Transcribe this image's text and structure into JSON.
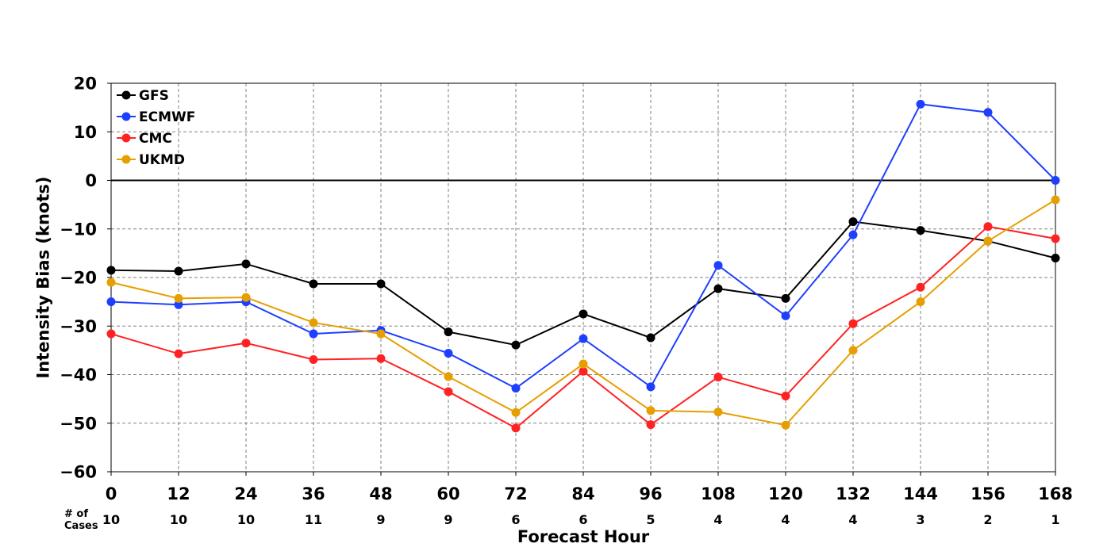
{
  "chart_data": {
    "type": "line",
    "xlabel": "Forecast Hour",
    "ylabel": "Intensity Bias (knots)",
    "x": [
      0,
      12,
      24,
      36,
      48,
      60,
      72,
      84,
      96,
      108,
      120,
      132,
      144,
      156,
      168
    ],
    "x_tick_labels": [
      "0",
      "12",
      "24",
      "36",
      "48",
      "60",
      "72",
      "84",
      "96",
      "108",
      "120",
      "132",
      "144",
      "156",
      "168"
    ],
    "ylim": [
      -60,
      20
    ],
    "y_ticks": [
      20,
      10,
      0,
      -10,
      -20,
      -30,
      -40,
      -50,
      -60
    ],
    "y_tick_labels": [
      "20",
      "10",
      "0",
      "−10",
      "−20",
      "−30",
      "−40",
      "−50",
      "−60"
    ],
    "grid": true,
    "zero_line": true,
    "legend_position": "top-left",
    "cases_title": "# of Cases",
    "cases_title_lines": [
      "# of",
      "Cases"
    ],
    "cases": [
      "10",
      "10",
      "10",
      "11",
      "9",
      "9",
      "6",
      "6",
      "5",
      "4",
      "4",
      "4",
      "3",
      "2",
      "1"
    ],
    "series": [
      {
        "name": "GFS",
        "color": "#000000",
        "values": [
          -18.5,
          -18.7,
          -17.2,
          -21.3,
          -21.3,
          -31.2,
          -33.9,
          -27.5,
          -32.4,
          -22.3,
          -24.3,
          -8.5,
          -10.3,
          -12.5,
          -16.0
        ]
      },
      {
        "name": "ECMWF",
        "color": "#1f3fff",
        "values": [
          -25.0,
          -25.6,
          -25.0,
          -31.6,
          -30.9,
          -35.6,
          -42.8,
          -32.6,
          -42.5,
          -17.5,
          -27.9,
          -11.2,
          15.7,
          14.0,
          0.0
        ]
      },
      {
        "name": "CMC",
        "color": "#ff2222",
        "values": [
          -31.6,
          -35.7,
          -33.5,
          -36.9,
          -36.7,
          -43.5,
          -51.0,
          -39.3,
          -50.3,
          -40.5,
          -44.4,
          -29.5,
          -22.0,
          -9.5,
          -12.0
        ]
      },
      {
        "name": "UKMD",
        "color": "#e69f00",
        "values": [
          -21.0,
          -24.3,
          -24.1,
          -29.3,
          -31.6,
          -40.4,
          -47.8,
          -37.8,
          -47.4,
          -47.7,
          -50.4,
          -35.0,
          -25.0,
          -12.5,
          -4.0
        ]
      }
    ]
  }
}
